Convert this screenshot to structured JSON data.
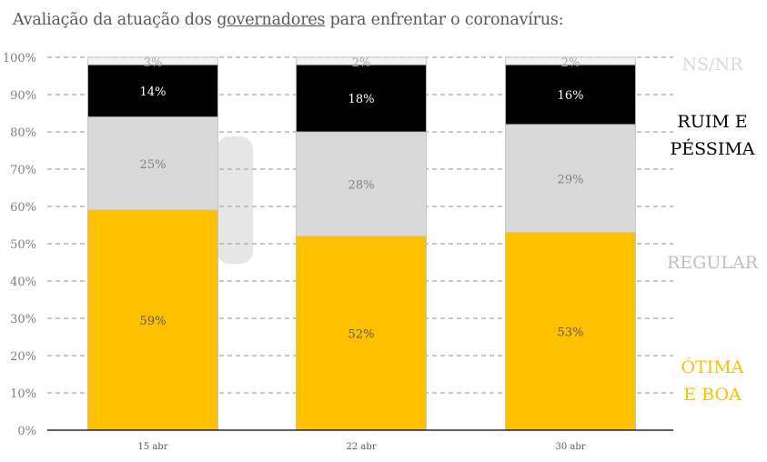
{
  "title": {
    "before": "Avaliação da atuação dos ",
    "underlined": "governadores",
    "after": " para enfrentar o coronavírus:"
  },
  "chart_data": {
    "type": "bar",
    "stacked": true,
    "categories": [
      "15 abr",
      "22 abr",
      "30 abr"
    ],
    "series": [
      {
        "name": "ÓTIMA E BOA",
        "color": "#FFC000",
        "label_color": "#595959",
        "values": [
          59,
          52,
          53
        ],
        "labels": [
          "59%",
          "52%",
          "53%"
        ]
      },
      {
        "name": "REGULAR",
        "color": "#D9D9D9",
        "label_color": "#7F7F7F",
        "values": [
          25,
          28,
          29
        ],
        "labels": [
          "25%",
          "28%",
          "29%"
        ]
      },
      {
        "name": "RUIM E PÉSSIMA",
        "color": "#000000",
        "label_color": "#FFFFFF",
        "values": [
          14,
          18,
          16
        ],
        "labels": [
          "14%",
          "18%",
          "16%"
        ]
      },
      {
        "name": "NS/NR",
        "color": "#F2F2F2",
        "label_color": "#A6A6A6",
        "values": [
          3,
          2,
          2
        ],
        "labels": [
          "3%",
          "2%",
          "2%"
        ]
      }
    ],
    "legend": [
      {
        "lines": [
          "NS/NR"
        ],
        "color": "#D9D9D9"
      },
      {
        "lines": [
          "RUIM E",
          "PÉSSIMA"
        ],
        "color": "#000000"
      },
      {
        "lines": [
          "REGULAR"
        ],
        "color": "#BFBFBF"
      },
      {
        "lines": [
          "ÓTIMA",
          "E BOA"
        ],
        "color": "#FFC000"
      }
    ],
    "legend_placement": "right",
    "ylim": [
      0,
      100
    ],
    "yticks": [
      "0%",
      "10%",
      "20%",
      "30%",
      "40%",
      "50%",
      "60%",
      "70%",
      "80%",
      "90%",
      "100%"
    ],
    "grid": "horizontal dashed",
    "xlabel": "",
    "ylabel": ""
  }
}
